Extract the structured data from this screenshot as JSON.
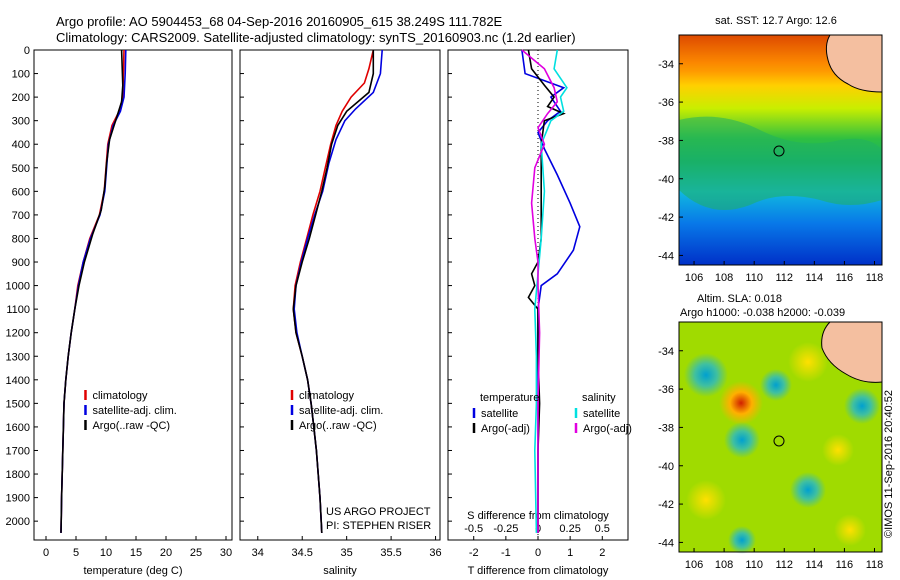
{
  "header": {
    "line1": "Argo profile: AO 5904453_68 04-Sep-2016 20160905_615 38.249S 111.782E",
    "line2": "Climatology: CARS2009. Satellite-adjusted climatology: synTS_20160903.nc (1.2d earlier)"
  },
  "colors": {
    "climatology": "#e00000",
    "satellite": "#0000e0",
    "argo": "#000000",
    "sat_salinity": "#00e0e0",
    "argo_salinity": "#e000e0"
  },
  "depth_axis": {
    "ticks": [
      0,
      100,
      200,
      300,
      400,
      500,
      600,
      700,
      800,
      900,
      1000,
      1100,
      1200,
      1300,
      1400,
      1500,
      1600,
      1700,
      1800,
      1900,
      2000
    ],
    "ylim": [
      0,
      2080
    ],
    "inverted": true
  },
  "chart_data": [
    {
      "type": "line",
      "panel": "temperature",
      "xlabel": "temperature (deg C)",
      "xticks": [
        0,
        5,
        10,
        15,
        20,
        25,
        30
      ],
      "xlim": [
        -2,
        31
      ],
      "legend": [
        "climatology",
        "satellite-adj. clim.",
        "Argo(..raw -QC)"
      ],
      "legend_position": "lower-right",
      "series": [
        {
          "role": "climatology",
          "points": [
            [
              13,
              0
            ],
            [
              12.9,
              100
            ],
            [
              12.8,
              200
            ],
            [
              12.2,
              260
            ],
            [
              11.0,
              320
            ],
            [
              10.3,
              400
            ],
            [
              10.0,
              500
            ],
            [
              9.7,
              600
            ],
            [
              8.9,
              700
            ],
            [
              7.3,
              800
            ],
            [
              6.2,
              900
            ],
            [
              5.3,
              1000
            ],
            [
              4.8,
              1100
            ],
            [
              4.2,
              1200
            ],
            [
              3.7,
              1300
            ],
            [
              3.3,
              1400
            ],
            [
              3.0,
              1500
            ],
            [
              2.8,
              1700
            ],
            [
              2.6,
              1900
            ],
            [
              2.5,
              2050
            ]
          ]
        },
        {
          "role": "satellite",
          "points": [
            [
              13.3,
              0
            ],
            [
              13.2,
              100
            ],
            [
              13.0,
              200
            ],
            [
              12.4,
              260
            ],
            [
              11.2,
              320
            ],
            [
              10.4,
              400
            ],
            [
              10.1,
              500
            ],
            [
              9.8,
              600
            ],
            [
              9.0,
              700
            ],
            [
              7.4,
              800
            ],
            [
              6.2,
              900
            ],
            [
              5.4,
              1000
            ],
            [
              4.8,
              1100
            ],
            [
              4.2,
              1200
            ],
            [
              3.7,
              1300
            ],
            [
              3.3,
              1400
            ],
            [
              3.0,
              1500
            ],
            [
              2.8,
              1700
            ],
            [
              2.6,
              1900
            ],
            [
              2.5,
              2050
            ]
          ]
        },
        {
          "role": "argo",
          "points": [
            [
              12.6,
              0
            ],
            [
              12.8,
              150
            ],
            [
              12.6,
              220
            ],
            [
              11.6,
              300
            ],
            [
              10.6,
              380
            ],
            [
              10.1,
              480
            ],
            [
              9.8,
              580
            ],
            [
              9.2,
              680
            ],
            [
              7.8,
              780
            ],
            [
              6.4,
              900
            ],
            [
              5.5,
              1000
            ],
            [
              4.8,
              1100
            ],
            [
              4.2,
              1200
            ],
            [
              3.7,
              1300
            ],
            [
              3.3,
              1400
            ],
            [
              3.0,
              1500
            ],
            [
              2.8,
              1700
            ],
            [
              2.6,
              1900
            ],
            [
              2.5,
              2050
            ]
          ]
        }
      ]
    },
    {
      "type": "line",
      "panel": "salinity",
      "xlabel": "salinity",
      "xticks": [
        "34",
        "34.5",
        "35",
        "35.5",
        "36"
      ],
      "xlim": [
        33.8,
        36.05
      ],
      "legend": [
        "climatology",
        "satellite-adj. clim.",
        "Argo(..raw -QC)"
      ],
      "legend_position": "lower-right",
      "annotation": [
        "US ARGO PROJECT",
        "PI: STEPHEN RISER"
      ],
      "series": [
        {
          "role": "climatology",
          "points": [
            [
              35.3,
              0
            ],
            [
              35.25,
              80
            ],
            [
              35.2,
              140
            ],
            [
              35.05,
              200
            ],
            [
              34.95,
              260
            ],
            [
              34.88,
              320
            ],
            [
              34.82,
              400
            ],
            [
              34.76,
              500
            ],
            [
              34.7,
              600
            ],
            [
              34.62,
              700
            ],
            [
              34.55,
              800
            ],
            [
              34.48,
              900
            ],
            [
              34.42,
              1000
            ],
            [
              34.4,
              1100
            ],
            [
              34.43,
              1200
            ],
            [
              34.5,
              1300
            ],
            [
              34.56,
              1400
            ],
            [
              34.6,
              1500
            ],
            [
              34.63,
              1600
            ],
            [
              34.66,
              1700
            ],
            [
              34.68,
              1800
            ],
            [
              34.7,
              1900
            ],
            [
              34.72,
              2050
            ]
          ]
        },
        {
          "role": "satellite",
          "points": [
            [
              35.4,
              0
            ],
            [
              35.38,
              100
            ],
            [
              35.3,
              180
            ],
            [
              35.1,
              250
            ],
            [
              34.98,
              300
            ],
            [
              34.88,
              380
            ],
            [
              34.8,
              480
            ],
            [
              34.73,
              600
            ],
            [
              34.64,
              700
            ],
            [
              34.56,
              800
            ],
            [
              34.49,
              900
            ],
            [
              34.43,
              1000
            ],
            [
              34.41,
              1100
            ],
            [
              34.44,
              1200
            ],
            [
              34.5,
              1300
            ],
            [
              34.56,
              1400
            ],
            [
              34.6,
              1500
            ],
            [
              34.63,
              1600
            ],
            [
              34.66,
              1700
            ],
            [
              34.68,
              1800
            ],
            [
              34.7,
              1900
            ],
            [
              34.72,
              2050
            ]
          ]
        },
        {
          "role": "argo",
          "points": [
            [
              35.3,
              0
            ],
            [
              35.3,
              100
            ],
            [
              35.25,
              180
            ],
            [
              35.0,
              260
            ],
            [
              34.9,
              320
            ],
            [
              34.83,
              400
            ],
            [
              34.78,
              500
            ],
            [
              34.72,
              600
            ],
            [
              34.65,
              700
            ],
            [
              34.58,
              800
            ],
            [
              34.5,
              900
            ],
            [
              34.43,
              1000
            ],
            [
              34.4,
              1100
            ],
            [
              34.43,
              1200
            ],
            [
              34.5,
              1300
            ],
            [
              34.56,
              1400
            ],
            [
              34.6,
              1500
            ],
            [
              34.63,
              1600
            ],
            [
              34.66,
              1700
            ],
            [
              34.68,
              1800
            ],
            [
              34.7,
              1900
            ],
            [
              34.72,
              2050
            ]
          ]
        }
      ]
    },
    {
      "type": "line",
      "panel": "difference",
      "xlabel": "T difference from climatology",
      "xlabel_top": "S difference from climatology",
      "xticks": [
        "-2",
        "-1",
        "0",
        "1",
        "2"
      ],
      "xticks_top": [
        "-0.5",
        "-0.25",
        "0",
        "0.25",
        "0.5"
      ],
      "xlim": [
        -2.8,
        2.8
      ],
      "legend_left_title": "temperature",
      "legend_right_title": "salinity",
      "legend_left": [
        "satellite",
        "Argo(-adj)"
      ],
      "legend_right": [
        "satellite",
        "Argo(-adj)"
      ],
      "legend_position": "lower",
      "series": [
        {
          "role": "temperature satellite",
          "points": [
            [
              -0.5,
              0
            ],
            [
              -0.4,
              100
            ],
            [
              0.8,
              160
            ],
            [
              0.4,
              200
            ],
            [
              0.7,
              260
            ],
            [
              0.3,
              300
            ],
            [
              0,
              350
            ],
            [
              0.2,
              420
            ],
            [
              0.6,
              530
            ],
            [
              1.0,
              650
            ],
            [
              1.3,
              750
            ],
            [
              1.1,
              850
            ],
            [
              0.6,
              950
            ],
            [
              0.1,
              1000
            ],
            [
              0,
              1100
            ],
            [
              0,
              1300
            ],
            [
              0,
              1500
            ],
            [
              0,
              2050
            ]
          ]
        },
        {
          "role": "temperature argo",
          "points": [
            [
              -0.3,
              0
            ],
            [
              -0.2,
              80
            ],
            [
              0.2,
              150
            ],
            [
              0.5,
              200
            ],
            [
              0.3,
              240
            ],
            [
              0.8,
              270
            ],
            [
              0.2,
              300
            ],
            [
              0.1,
              400
            ],
            [
              0.1,
              600
            ],
            [
              0.1,
              800
            ],
            [
              0,
              900
            ],
            [
              -0.2,
              950
            ],
            [
              -0.1,
              1000
            ],
            [
              -0.3,
              1050
            ],
            [
              0,
              1100
            ],
            [
              0,
              1300
            ],
            [
              0.05,
              1500
            ],
            [
              0,
              1700
            ],
            [
              0,
              2050
            ]
          ]
        },
        {
          "role": "salinity satellite",
          "points": [
            [
              0.6,
              0
            ],
            [
              0.5,
              80
            ],
            [
              0.9,
              160
            ],
            [
              0.7,
              200
            ],
            [
              0.8,
              260
            ],
            [
              0.4,
              300
            ],
            [
              0.1,
              400
            ],
            [
              0.2,
              600
            ],
            [
              0.1,
              800
            ],
            [
              0,
              950
            ],
            [
              -0.1,
              1100
            ],
            [
              -0.05,
              1300
            ],
            [
              -0.05,
              1500
            ],
            [
              -0.1,
              1700
            ],
            [
              -0.05,
              2050
            ]
          ]
        },
        {
          "role": "salinity argo",
          "points": [
            [
              -0.5,
              0
            ],
            [
              0.2,
              80
            ],
            [
              0.5,
              160
            ],
            [
              0.6,
              220
            ],
            [
              0.3,
              270
            ],
            [
              0,
              330
            ],
            [
              0.2,
              400
            ],
            [
              -0.1,
              500
            ],
            [
              -0.2,
              650
            ],
            [
              -0.1,
              800
            ],
            [
              0,
              900
            ],
            [
              0,
              1000
            ],
            [
              0.05,
              1200
            ],
            [
              0,
              1500
            ],
            [
              0,
              2050
            ]
          ]
        }
      ]
    }
  ],
  "maps": {
    "sst": {
      "title": "sat. SST: 12.7 Argo: 12.6",
      "x_ticks": [
        "106",
        "108",
        "110",
        "112",
        "114",
        "116",
        "118"
      ],
      "y_ticks": [
        "-34",
        "-36",
        "-38",
        "-40",
        "-42",
        "-44"
      ],
      "lon_range": [
        105,
        118.5
      ],
      "lat_range": [
        -44.5,
        -32.5
      ],
      "profile_position": [
        111.8,
        -38.25
      ]
    },
    "sla": {
      "title_line1": "Altim. SLA: 0.018",
      "title_line2": "Argo h1000: -0.038 h2000: -0.039",
      "x_ticks": [
        "106",
        "108",
        "110",
        "112",
        "114",
        "116",
        "118"
      ],
      "y_ticks": [
        "-34",
        "-36",
        "-38",
        "-40",
        "-42",
        "-44"
      ],
      "lon_range": [
        105,
        118.5
      ],
      "lat_range": [
        -44.5,
        -32.5
      ],
      "profile_position": [
        111.8,
        -38.25
      ]
    }
  },
  "credit": "©IMOS 11-Sep-2016 20:40:52"
}
